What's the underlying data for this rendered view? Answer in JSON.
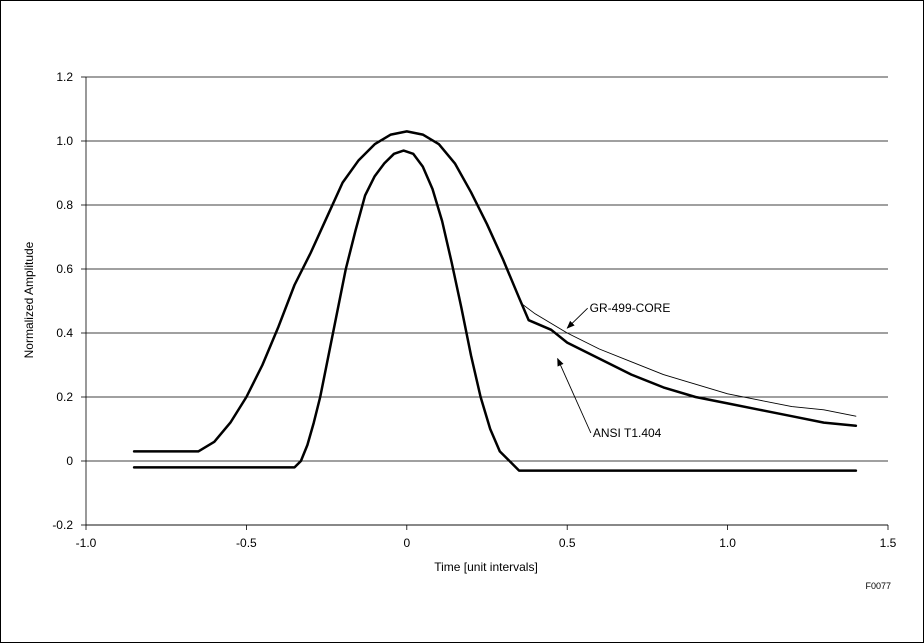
{
  "chart_data": {
    "type": "line",
    "title": "",
    "xlabel": "Time [unit intervals]",
    "ylabel": "Normalized Amplitude",
    "xlim": [
      -1.0,
      1.5
    ],
    "ylim": [
      -0.2,
      1.2
    ],
    "x_ticks": [
      {
        "value": -1.0,
        "label": "-1.0"
      },
      {
        "value": -0.5,
        "label": "-0.5"
      },
      {
        "value": 0,
        "label": "0"
      },
      {
        "value": 0.5,
        "label": "0.5"
      },
      {
        "value": 1.0,
        "label": "1.0"
      },
      {
        "value": 1.5,
        "label": "1.5"
      }
    ],
    "y_ticks": [
      {
        "value": -0.2,
        "label": "-0.2"
      },
      {
        "value": 0,
        "label": "0"
      },
      {
        "value": 0.2,
        "label": "0.2"
      },
      {
        "value": 0.4,
        "label": "0.4"
      },
      {
        "value": 0.6,
        "label": "0.6"
      },
      {
        "value": 0.8,
        "label": "0.8"
      },
      {
        "value": 1.0,
        "label": "1.0"
      },
      {
        "value": 1.2,
        "label": "1.2"
      }
    ],
    "grid": "horizontal",
    "series": [
      {
        "color": "#000000",
        "width": 2.5,
        "points": [
          [
            -0.85,
            -0.02
          ],
          [
            -0.35,
            -0.02
          ],
          [
            -0.33,
            0.0
          ],
          [
            -0.31,
            0.05
          ],
          [
            -0.29,
            0.12
          ],
          [
            -0.27,
            0.2
          ],
          [
            -0.25,
            0.3
          ],
          [
            -0.22,
            0.45
          ],
          [
            -0.19,
            0.6
          ],
          [
            -0.16,
            0.72
          ],
          [
            -0.13,
            0.83
          ],
          [
            -0.1,
            0.89
          ],
          [
            -0.07,
            0.93
          ],
          [
            -0.04,
            0.96
          ],
          [
            -0.01,
            0.97
          ],
          [
            0.02,
            0.96
          ],
          [
            0.05,
            0.92
          ],
          [
            0.08,
            0.85
          ],
          [
            0.11,
            0.75
          ],
          [
            0.14,
            0.62
          ],
          [
            0.17,
            0.48
          ],
          [
            0.2,
            0.33
          ],
          [
            0.23,
            0.2
          ],
          [
            0.26,
            0.1
          ],
          [
            0.29,
            0.03
          ],
          [
            0.32,
            0.0
          ],
          [
            0.35,
            -0.03
          ],
          [
            1.4,
            -0.03
          ]
        ]
      },
      {
        "color": "#000000",
        "width": 2.5,
        "points": [
          [
            -0.85,
            0.03
          ],
          [
            -0.65,
            0.03
          ],
          [
            -0.6,
            0.06
          ],
          [
            -0.55,
            0.12
          ],
          [
            -0.5,
            0.2
          ],
          [
            -0.45,
            0.3
          ],
          [
            -0.4,
            0.42
          ],
          [
            -0.35,
            0.55
          ],
          [
            -0.3,
            0.65
          ],
          [
            -0.25,
            0.76
          ],
          [
            -0.2,
            0.87
          ],
          [
            -0.15,
            0.94
          ],
          [
            -0.1,
            0.99
          ],
          [
            -0.05,
            1.02
          ],
          [
            0.0,
            1.03
          ],
          [
            0.05,
            1.02
          ],
          [
            0.1,
            0.99
          ],
          [
            0.15,
            0.93
          ],
          [
            0.2,
            0.84
          ],
          [
            0.25,
            0.74
          ],
          [
            0.3,
            0.63
          ],
          [
            0.35,
            0.51
          ],
          [
            0.38,
            0.44
          ],
          [
            0.45,
            0.41
          ],
          [
            0.5,
            0.37
          ],
          [
            0.6,
            0.32
          ],
          [
            0.7,
            0.27
          ],
          [
            0.8,
            0.23
          ],
          [
            0.9,
            0.2
          ],
          [
            1.0,
            0.18
          ],
          [
            1.1,
            0.16
          ],
          [
            1.2,
            0.14
          ],
          [
            1.3,
            0.12
          ],
          [
            1.4,
            0.11
          ]
        ]
      },
      {
        "color": "#000000",
        "width": 0.9,
        "points": [
          [
            0.36,
            0.49
          ],
          [
            0.4,
            0.46
          ],
          [
            0.5,
            0.4
          ],
          [
            0.6,
            0.35
          ],
          [
            0.7,
            0.31
          ],
          [
            0.8,
            0.27
          ],
          [
            0.9,
            0.24
          ],
          [
            1.0,
            0.21
          ],
          [
            1.1,
            0.19
          ],
          [
            1.2,
            0.17
          ],
          [
            1.3,
            0.16
          ],
          [
            1.4,
            0.14
          ]
        ]
      }
    ],
    "annotations": [
      {
        "text": "GR-499-CORE",
        "text_x": 0.57,
        "text_y": 0.465,
        "arrow_to": [
          0.5,
          0.415
        ]
      },
      {
        "text": "ANSI T1.404",
        "text_x": 0.58,
        "text_y": 0.075,
        "arrow_to": [
          0.47,
          0.32
        ]
      }
    ],
    "footnote": "F0077"
  }
}
